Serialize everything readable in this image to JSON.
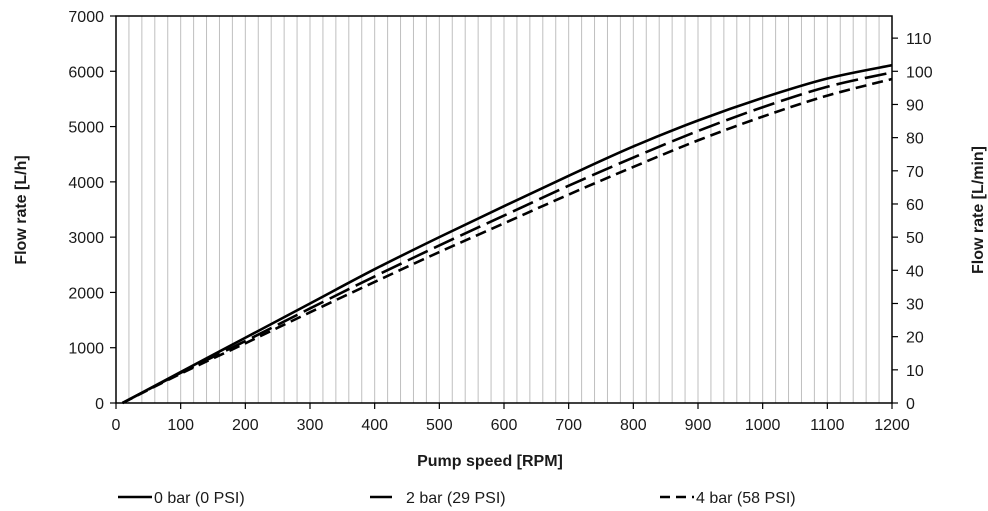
{
  "chart_data": {
    "type": "line",
    "title": "",
    "xlabel": "Pump speed [RPM]",
    "ylabel": "Flow rate [L/h]",
    "y2label": "Flow rate [L/min]",
    "xlim": [
      0,
      1200
    ],
    "ylim": [
      0,
      7000
    ],
    "y2lim": [
      0,
      116.67
    ],
    "x_ticks": [
      0,
      100,
      200,
      300,
      400,
      500,
      600,
      700,
      800,
      900,
      1000,
      1100,
      1200
    ],
    "y_ticks": [
      0,
      1000,
      2000,
      3000,
      4000,
      5000,
      6000,
      7000
    ],
    "y2_ticks": [
      0,
      10,
      20,
      30,
      40,
      50,
      60,
      70,
      80,
      90,
      100,
      110
    ],
    "grid": "vertical",
    "legend_position": "bottom",
    "series": [
      {
        "name": "0 bar (0 PSI)",
        "style": "solid",
        "x": [
          10,
          100,
          200,
          300,
          400,
          500,
          600,
          700,
          800,
          900,
          1000,
          1100,
          1200
        ],
        "y": [
          0,
          560,
          1180,
          1800,
          2420,
          3000,
          3560,
          4110,
          4640,
          5110,
          5520,
          5870,
          6110
        ]
      },
      {
        "name": "2 bar (29 PSI)",
        "style": "long-dash",
        "x": [
          10,
          100,
          200,
          300,
          400,
          500,
          600,
          700,
          800,
          900,
          1000,
          1100,
          1200
        ],
        "y": [
          0,
          545,
          1120,
          1710,
          2290,
          2850,
          3390,
          3930,
          4440,
          4920,
          5350,
          5720,
          5980
        ]
      },
      {
        "name": "4 bar (58 PSI)",
        "style": "short-dash",
        "x": [
          10,
          100,
          200,
          300,
          400,
          500,
          600,
          700,
          800,
          900,
          1000,
          1100,
          1200
        ],
        "y": [
          0,
          530,
          1080,
          1640,
          2190,
          2730,
          3250,
          3770,
          4270,
          4750,
          5180,
          5560,
          5860
        ]
      }
    ],
    "colors": {
      "line": "#000000",
      "grid": "#bfbfbf",
      "axis": "#000000"
    }
  }
}
